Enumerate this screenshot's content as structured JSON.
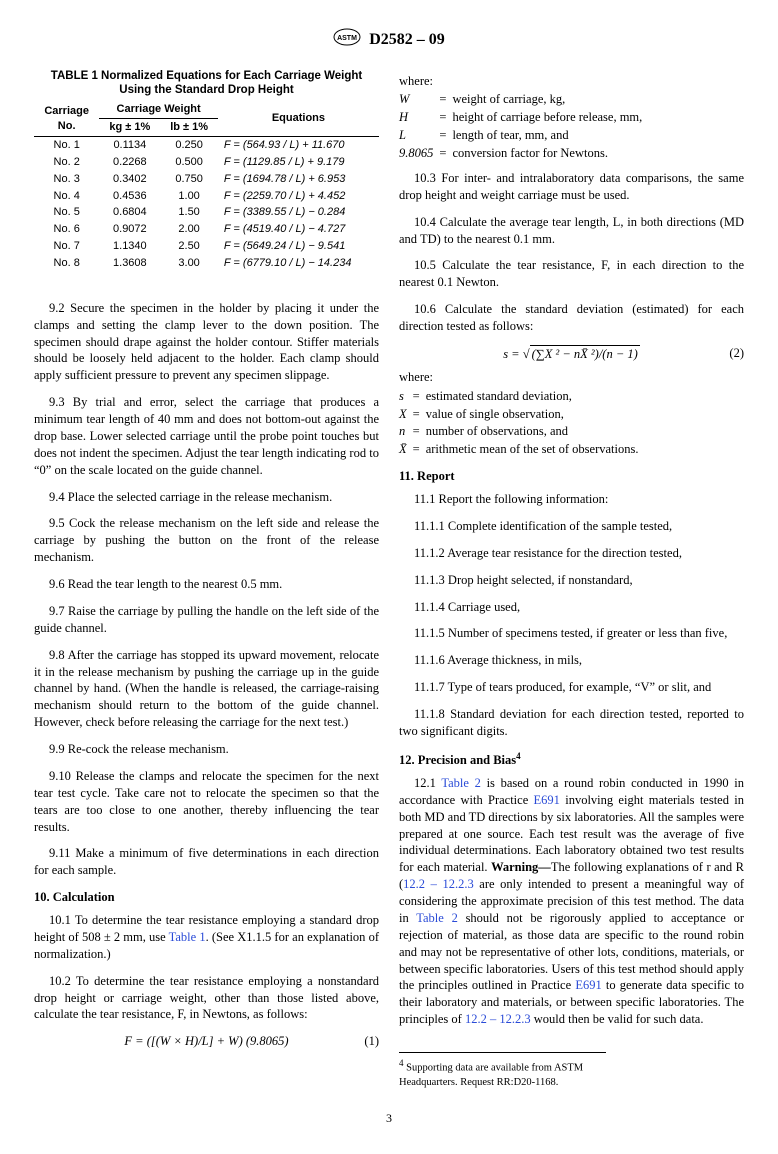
{
  "header": {
    "designation": "D2582 – 09"
  },
  "table1": {
    "caption": "TABLE 1 Normalized Equations for Each Carriage Weight Using the Standard Drop Height",
    "groupHeader": "Carriage Weight",
    "col0": "Carriage\nNo.",
    "col1": "kg ± 1%",
    "col2": "lb ± 1%",
    "col3": "Equations",
    "rows": [
      {
        "no": "No. 1",
        "kg": "0.1134",
        "lb": "0.250",
        "eq": "F = (564.93 / L) + 11.670"
      },
      {
        "no": "No. 2",
        "kg": "0.2268",
        "lb": "0.500",
        "eq": "F = (1129.85 / L) + 9.179"
      },
      {
        "no": "No. 3",
        "kg": "0.3402",
        "lb": "0.750",
        "eq": "F = (1694.78 / L) + 6.953"
      },
      {
        "no": "No. 4",
        "kg": "0.4536",
        "lb": "1.00",
        "eq": "F = (2259.70 / L) + 4.452"
      },
      {
        "no": "No. 5",
        "kg": "0.6804",
        "lb": "1.50",
        "eq": "F = (3389.55 / L) − 0.284"
      },
      {
        "no": "No. 6",
        "kg": "0.9072",
        "lb": "2.00",
        "eq": "F = (4519.40 / L) − 4.727"
      },
      {
        "no": "No. 7",
        "kg": "1.1340",
        "lb": "2.50",
        "eq": "F = (5649.24 / L) − 9.541"
      },
      {
        "no": "No. 8",
        "kg": "1.3608",
        "lb": "3.00",
        "eq": "F = (6779.10 / L) − 14.234"
      }
    ]
  },
  "left": {
    "p9_2": "9.2 Secure the specimen in the holder by placing it under the clamps and setting the clamp lever to the down position. The specimen should drape against the holder contour. Stiffer materials should be loosely held adjacent to the holder. Each clamp should apply sufficient pressure to prevent any specimen slippage.",
    "p9_3": "9.3 By trial and error, select the carriage that produces a minimum tear length of 40 mm and does not bottom-out against the drop base. Lower selected carriage until the probe point touches but does not indent the specimen. Adjust the tear length indicating rod to “0” on the scale located on the guide channel.",
    "p9_4": "9.4 Place the selected carriage in the release mechanism.",
    "p9_5": "9.5 Cock the release mechanism on the left side and release the carriage by pushing the button on the front of the release mechanism.",
    "p9_6": "9.6 Read the tear length to the nearest 0.5 mm.",
    "p9_7": "9.7 Raise the carriage by pulling the handle on the left side of the guide channel.",
    "p9_8": "9.8 After the carriage has stopped its upward movement, relocate it in the release mechanism by pushing the carriage up in the guide channel by hand. (When the handle is released, the carriage-raising mechanism should return to the bottom of the guide channel. However, check before releasing the carriage for the next test.)",
    "p9_9": "9.9 Re-cock the release mechanism.",
    "p9_10": "9.10 Release the clamps and relocate the specimen for the next tear test cycle. Take care not to relocate the specimen so that the tears are too close to one another, thereby influencing the tear results.",
    "p9_11": "9.11 Make a minimum of five determinations in each direction for each sample.",
    "h10": "10. Calculation",
    "p10_1a": "10.1 To determine the tear resistance employing a standard drop height of 508 ± 2 mm, use ",
    "p10_1_link": "Table 1",
    "p10_1b": ". (See X1.1.5 for an explanation of normalization.)",
    "p10_2": "10.2 To determine the tear resistance employing a nonstandard drop height or carriage weight, other than those listed above, calculate the tear resistance, F, in Newtons, as follows:",
    "eq1": "F = ([(W × H)/L] + W) (9.8065)",
    "eq1num": "(1)"
  },
  "right": {
    "whereLabel": "where:",
    "where1": [
      {
        "sym": "W",
        "def": "weight of carriage, kg,"
      },
      {
        "sym": "H",
        "def": "height of carriage before release, mm,"
      },
      {
        "sym": "L",
        "def": "length of tear, mm, and"
      },
      {
        "sym": "9.8065",
        "def": "conversion factor for Newtons."
      }
    ],
    "p10_3": "10.3 For inter- and intralaboratory data comparisons, the same drop height and weight carriage must be used.",
    "p10_4": "10.4 Calculate the average tear length, L, in both directions (MD and TD) to the nearest 0.1 mm.",
    "p10_5": "10.5 Calculate the tear resistance, F, in each direction to the nearest 0.1 Newton.",
    "p10_6": "10.6 Calculate the standard deviation (estimated) for each direction tested as follows:",
    "eq2pre": "s = ",
    "eq2rad": "(∑X ² − nX̄ ²)/(n − 1)",
    "eq2num": "(2)",
    "where2": [
      {
        "sym": "s",
        "def": "estimated standard deviation,"
      },
      {
        "sym": "X",
        "def": "value of single observation,"
      },
      {
        "sym": "n",
        "def": "number of observations, and"
      },
      {
        "sym": "X̄",
        "def": "arithmetic mean of the set of observations."
      }
    ],
    "h11": "11. Report",
    "p11_1": "11.1 Report the following information:",
    "p11_1_1": "11.1.1 Complete identification of the sample tested,",
    "p11_1_2": "11.1.2 Average tear resistance for the direction tested,",
    "p11_1_3": "11.1.3 Drop height selected, if nonstandard,",
    "p11_1_4": "11.1.4 Carriage used,",
    "p11_1_5": "11.1.5 Number of specimens tested, if greater or less than five,",
    "p11_1_6": "11.1.6 Average thickness, in mils,",
    "p11_1_7": "11.1.7 Type of tears produced, for example, “V” or slit, and",
    "p11_1_8": "11.1.8 Standard deviation for each direction tested, reported to two significant digits.",
    "h12": "12. Precision and Bias",
    "h12sup": "4",
    "p12_1a": "12.1 ",
    "p12_1_link1": "Table 2",
    "p12_1b": " is based on a round robin conducted in 1990 in accordance with Practice ",
    "p12_1_link2": "E691",
    "p12_1c": " involving eight materials tested in both MD and TD directions by six laboratories. All the samples were prepared at one source. Each test result was the average of five individual determinations. Each laboratory obtained two test results for each material. ",
    "p12_1_warn": "Warning—",
    "p12_1d": "The following explanations of r and R (",
    "p12_1_link3": "12.2 – 12.2.3",
    "p12_1e": " are only intended to present a meaningful way of considering the approximate precision of this test method. The data in ",
    "p12_1_link4": "Table 2",
    "p12_1f": " should not be rigorously applied to acceptance or rejection of material, as those data are specific to the round robin and may not be representative of other lots, conditions, materials, or between specific laboratories. Users of this test method should apply the principles outlined in Practice ",
    "p12_1_link5": "E691",
    "p12_1g": " to generate data specific to their laboratory and materials, or between specific laboratories. The principles of ",
    "p12_1_link6": "12.2 – 12.2.3",
    "p12_1h": " would then be valid for such data.",
    "footnote": "Supporting data are available from ASTM Headquarters. Request RR:D20-1168.",
    "footnoteNum": "4"
  },
  "pageNumber": "3"
}
